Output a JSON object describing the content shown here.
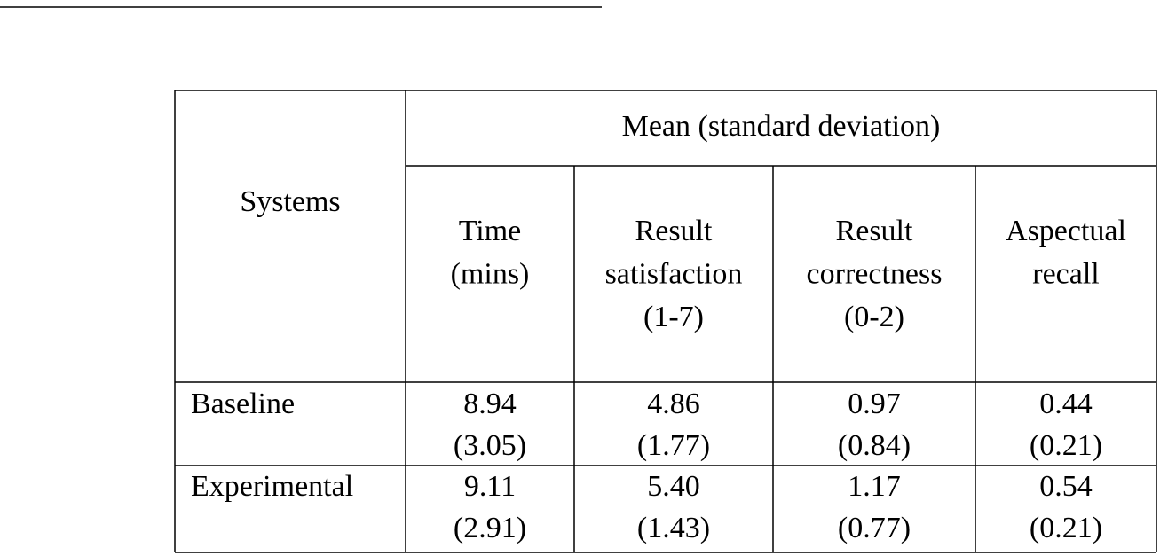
{
  "table": {
    "corner": "Systems",
    "group": "Mean (standard deviation)",
    "columns": [
      [
        "Time",
        "(mins)"
      ],
      [
        "Result",
        "satisfaction",
        "(1-7)"
      ],
      [
        "Result",
        "correctness",
        "(0-2)"
      ],
      [
        "Aspectual",
        "recall"
      ]
    ],
    "rows": [
      {
        "system": "Baseline",
        "cells": [
          [
            "8.94",
            "(3.05)"
          ],
          [
            "4.86",
            "(1.77)"
          ],
          [
            "0.97",
            "(0.84)"
          ],
          [
            "0.44",
            "(0.21)"
          ]
        ]
      },
      {
        "system": "Experimental",
        "cells": [
          [
            "9.11",
            "(2.91)"
          ],
          [
            "5.40",
            "(1.43)"
          ],
          [
            "1.17",
            "(0.77)"
          ],
          [
            "0.54",
            "(0.21)"
          ]
        ]
      }
    ]
  }
}
